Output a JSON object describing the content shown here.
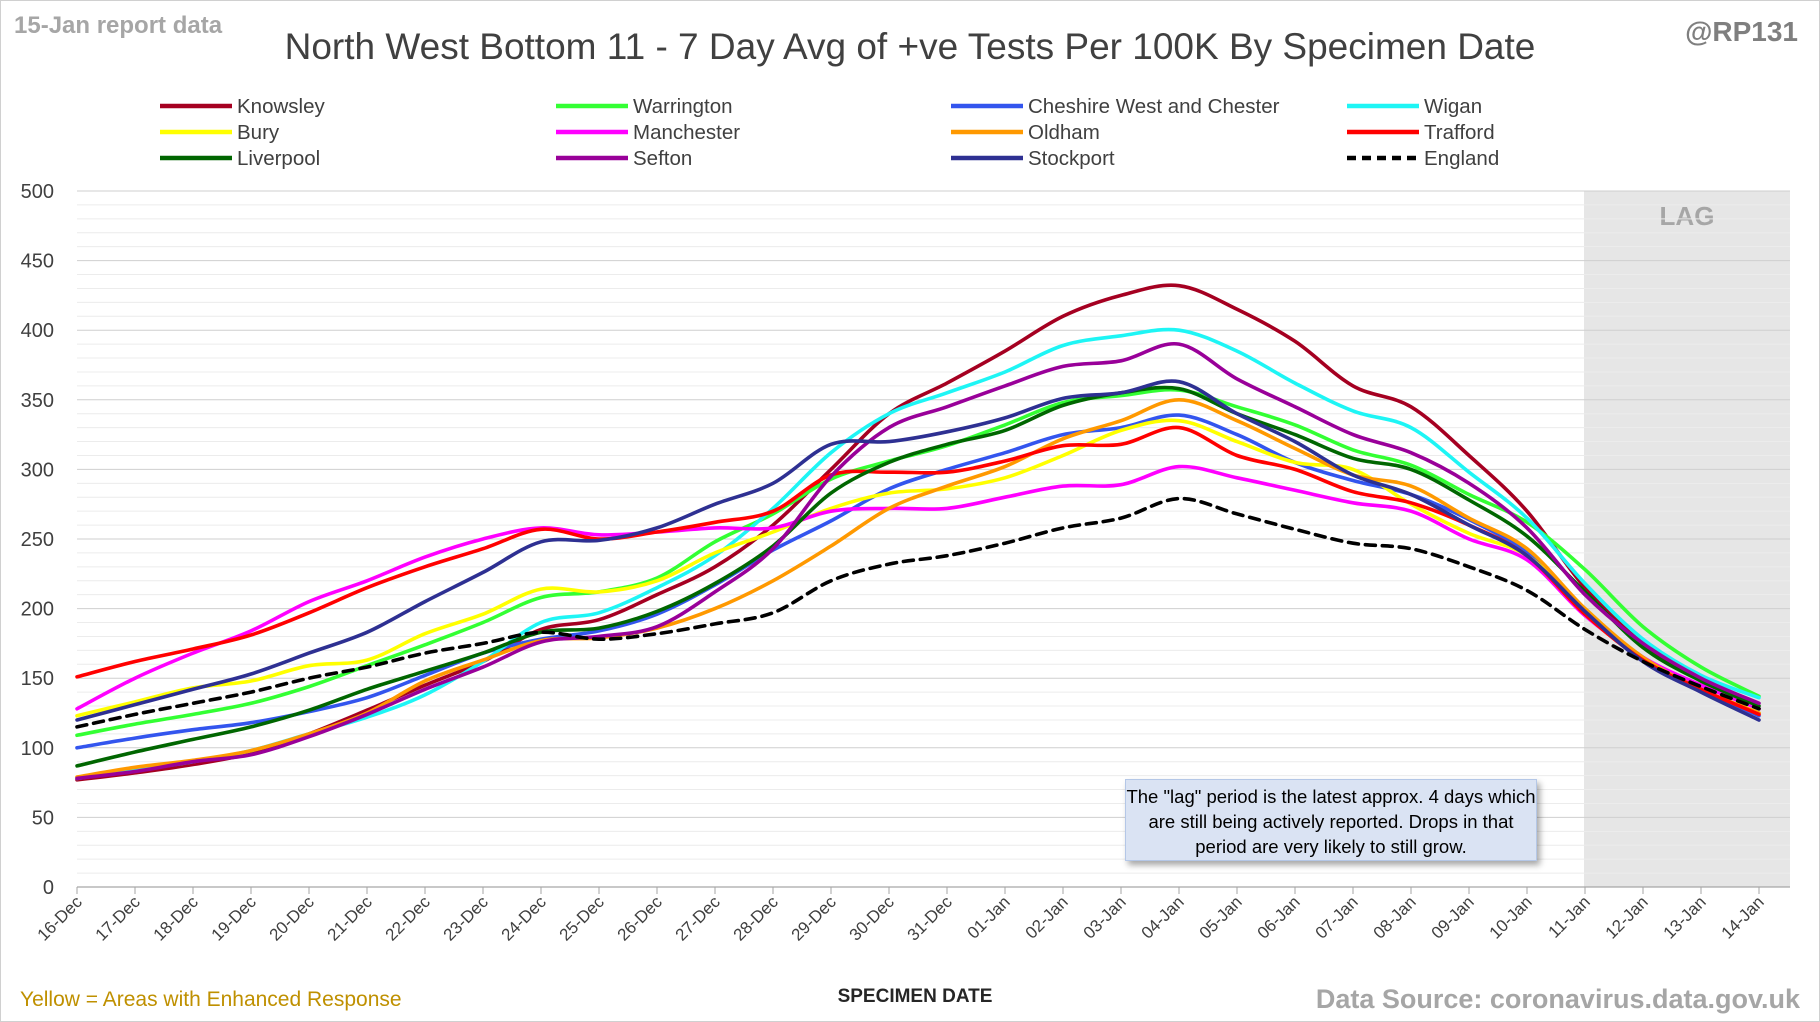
{
  "header": {
    "report_date": "15-Jan report data",
    "handle": "@RP131",
    "title": "North West Bottom 11 - 7 Day Avg of +ve Tests Per 100K By Specimen Date"
  },
  "footer": {
    "note": "Yellow = Areas with Enhanced Response",
    "source": "Data Source: coronavirus.data.gov.uk"
  },
  "annotations": {
    "lag_label": "LAG",
    "lag_note": "The \"lag\" period is the latest approx. 4 days which are still being actively reported. Drops in that period are very likely to still grow."
  },
  "colors": {
    "axis_text": "#404040",
    "grid": "#d9d9d9",
    "lag_band": "#e6e6e6",
    "lag_text": "#a6a6a6"
  },
  "chart_data": {
    "type": "line",
    "title": "North West Bottom 11 - 7 Day Avg of +ve Tests Per 100K By Specimen Date",
    "xlabel": "SPECIMEN DATE",
    "ylabel": "",
    "ylim": [
      0,
      500
    ],
    "yticks": [
      0,
      50,
      100,
      150,
      200,
      250,
      300,
      350,
      400,
      450,
      500
    ],
    "grid": true,
    "legend_position": "top",
    "lag_period": {
      "start": "11-Jan",
      "end": "14-Jan"
    },
    "categories": [
      "16-Dec",
      "17-Dec",
      "18-Dec",
      "19-Dec",
      "20-Dec",
      "21-Dec",
      "22-Dec",
      "23-Dec",
      "24-Dec",
      "25-Dec",
      "26-Dec",
      "27-Dec",
      "28-Dec",
      "29-Dec",
      "30-Dec",
      "31-Dec",
      "01-Jan",
      "02-Jan",
      "03-Jan",
      "04-Jan",
      "05-Jan",
      "06-Jan",
      "07-Jan",
      "08-Jan",
      "09-Jan",
      "10-Jan",
      "11-Jan",
      "12-Jan",
      "13-Jan",
      "14-Jan"
    ],
    "series": [
      {
        "name": "Knowsley",
        "color": "#a50021",
        "dashed": false,
        "values": [
          77,
          82,
          88,
          96,
          110,
          127,
          145,
          162,
          185,
          192,
          210,
          230,
          260,
          300,
          340,
          362,
          385,
          410,
          425,
          432,
          415,
          392,
          360,
          345,
          310,
          270,
          215,
          175,
          148,
          128
        ]
      },
      {
        "name": "Warrington",
        "color": "#33ff33",
        "dashed": false,
        "values": [
          109,
          117,
          124,
          132,
          144,
          159,
          174,
          190,
          208,
          212,
          222,
          248,
          268,
          293,
          306,
          317,
          332,
          348,
          353,
          357,
          345,
          332,
          314,
          303,
          282,
          262,
          228,
          187,
          158,
          137
        ]
      },
      {
        "name": "Cheshire West and Chester",
        "color": "#3355ee",
        "dashed": false,
        "values": [
          100,
          107,
          113,
          118,
          126,
          136,
          152,
          168,
          178,
          184,
          196,
          217,
          242,
          263,
          286,
          300,
          312,
          325,
          330,
          339,
          325,
          305,
          292,
          282,
          264,
          240,
          198,
          165,
          142,
          123
        ]
      },
      {
        "name": "Wigan",
        "color": "#1ef5f5",
        "dashed": false,
        "values": [
          78,
          84,
          90,
          98,
          110,
          122,
          138,
          162,
          190,
          197,
          215,
          238,
          272,
          312,
          340,
          355,
          370,
          389,
          396,
          400,
          385,
          362,
          342,
          330,
          298,
          265,
          218,
          178,
          152,
          136
        ]
      },
      {
        "name": "Bury",
        "color": "#ffff00",
        "dashed": false,
        "values": [
          123,
          133,
          143,
          148,
          159,
          163,
          182,
          196,
          214,
          212,
          220,
          240,
          255,
          272,
          283,
          286,
          294,
          310,
          328,
          335,
          320,
          305,
          300,
          275,
          254,
          238,
          200,
          164,
          142,
          125
        ]
      },
      {
        "name": "Manchester",
        "color": "#ff00ff",
        "dashed": false,
        "values": [
          128,
          150,
          168,
          184,
          205,
          220,
          237,
          250,
          258,
          253,
          255,
          258,
          258,
          270,
          272,
          272,
          280,
          288,
          289,
          302,
          294,
          285,
          276,
          270,
          250,
          235,
          195,
          165,
          145,
          128
        ]
      },
      {
        "name": "Oldham",
        "color": "#ff9900",
        "dashed": false,
        "values": [
          79,
          86,
          91,
          98,
          110,
          125,
          148,
          163,
          177,
          179,
          186,
          200,
          220,
          245,
          272,
          288,
          302,
          322,
          335,
          350,
          335,
          315,
          296,
          288,
          265,
          243,
          200,
          165,
          142,
          125
        ]
      },
      {
        "name": "Trafford",
        "color": "#ff0000",
        "dashed": false,
        "values": [
          151,
          162,
          171,
          181,
          197,
          215,
          230,
          243,
          257,
          250,
          255,
          262,
          270,
          296,
          298,
          298,
          306,
          317,
          318,
          330,
          310,
          300,
          284,
          276,
          260,
          238,
          196,
          163,
          142,
          124
        ]
      },
      {
        "name": "Liverpool",
        "color": "#006600",
        "dashed": false,
        "values": [
          87,
          97,
          106,
          115,
          127,
          142,
          155,
          168,
          183,
          186,
          198,
          218,
          245,
          283,
          305,
          318,
          328,
          346,
          355,
          358,
          340,
          325,
          308,
          300,
          278,
          252,
          212,
          172,
          148,
          130
        ]
      },
      {
        "name": "Sefton",
        "color": "#990099",
        "dashed": false,
        "values": [
          78,
          83,
          90,
          95,
          108,
          124,
          142,
          158,
          176,
          180,
          187,
          212,
          243,
          295,
          330,
          345,
          360,
          374,
          378,
          390,
          365,
          345,
          325,
          312,
          290,
          258,
          210,
          175,
          150,
          132
        ]
      },
      {
        "name": "Stockport",
        "color": "#2e3092",
        "dashed": false,
        "values": [
          120,
          131,
          142,
          153,
          168,
          183,
          205,
          226,
          248,
          249,
          258,
          275,
          290,
          318,
          320,
          327,
          337,
          351,
          355,
          363,
          340,
          320,
          296,
          282,
          260,
          238,
          198,
          162,
          140,
          120
        ]
      },
      {
        "name": "England",
        "color": "#000000",
        "dashed": true,
        "values": [
          115,
          124,
          132,
          140,
          150,
          158,
          168,
          175,
          183,
          178,
          182,
          189,
          197,
          220,
          232,
          238,
          247,
          258,
          265,
          279,
          268,
          257,
          247,
          243,
          230,
          213,
          185,
          162,
          144,
          128
        ]
      }
    ]
  }
}
